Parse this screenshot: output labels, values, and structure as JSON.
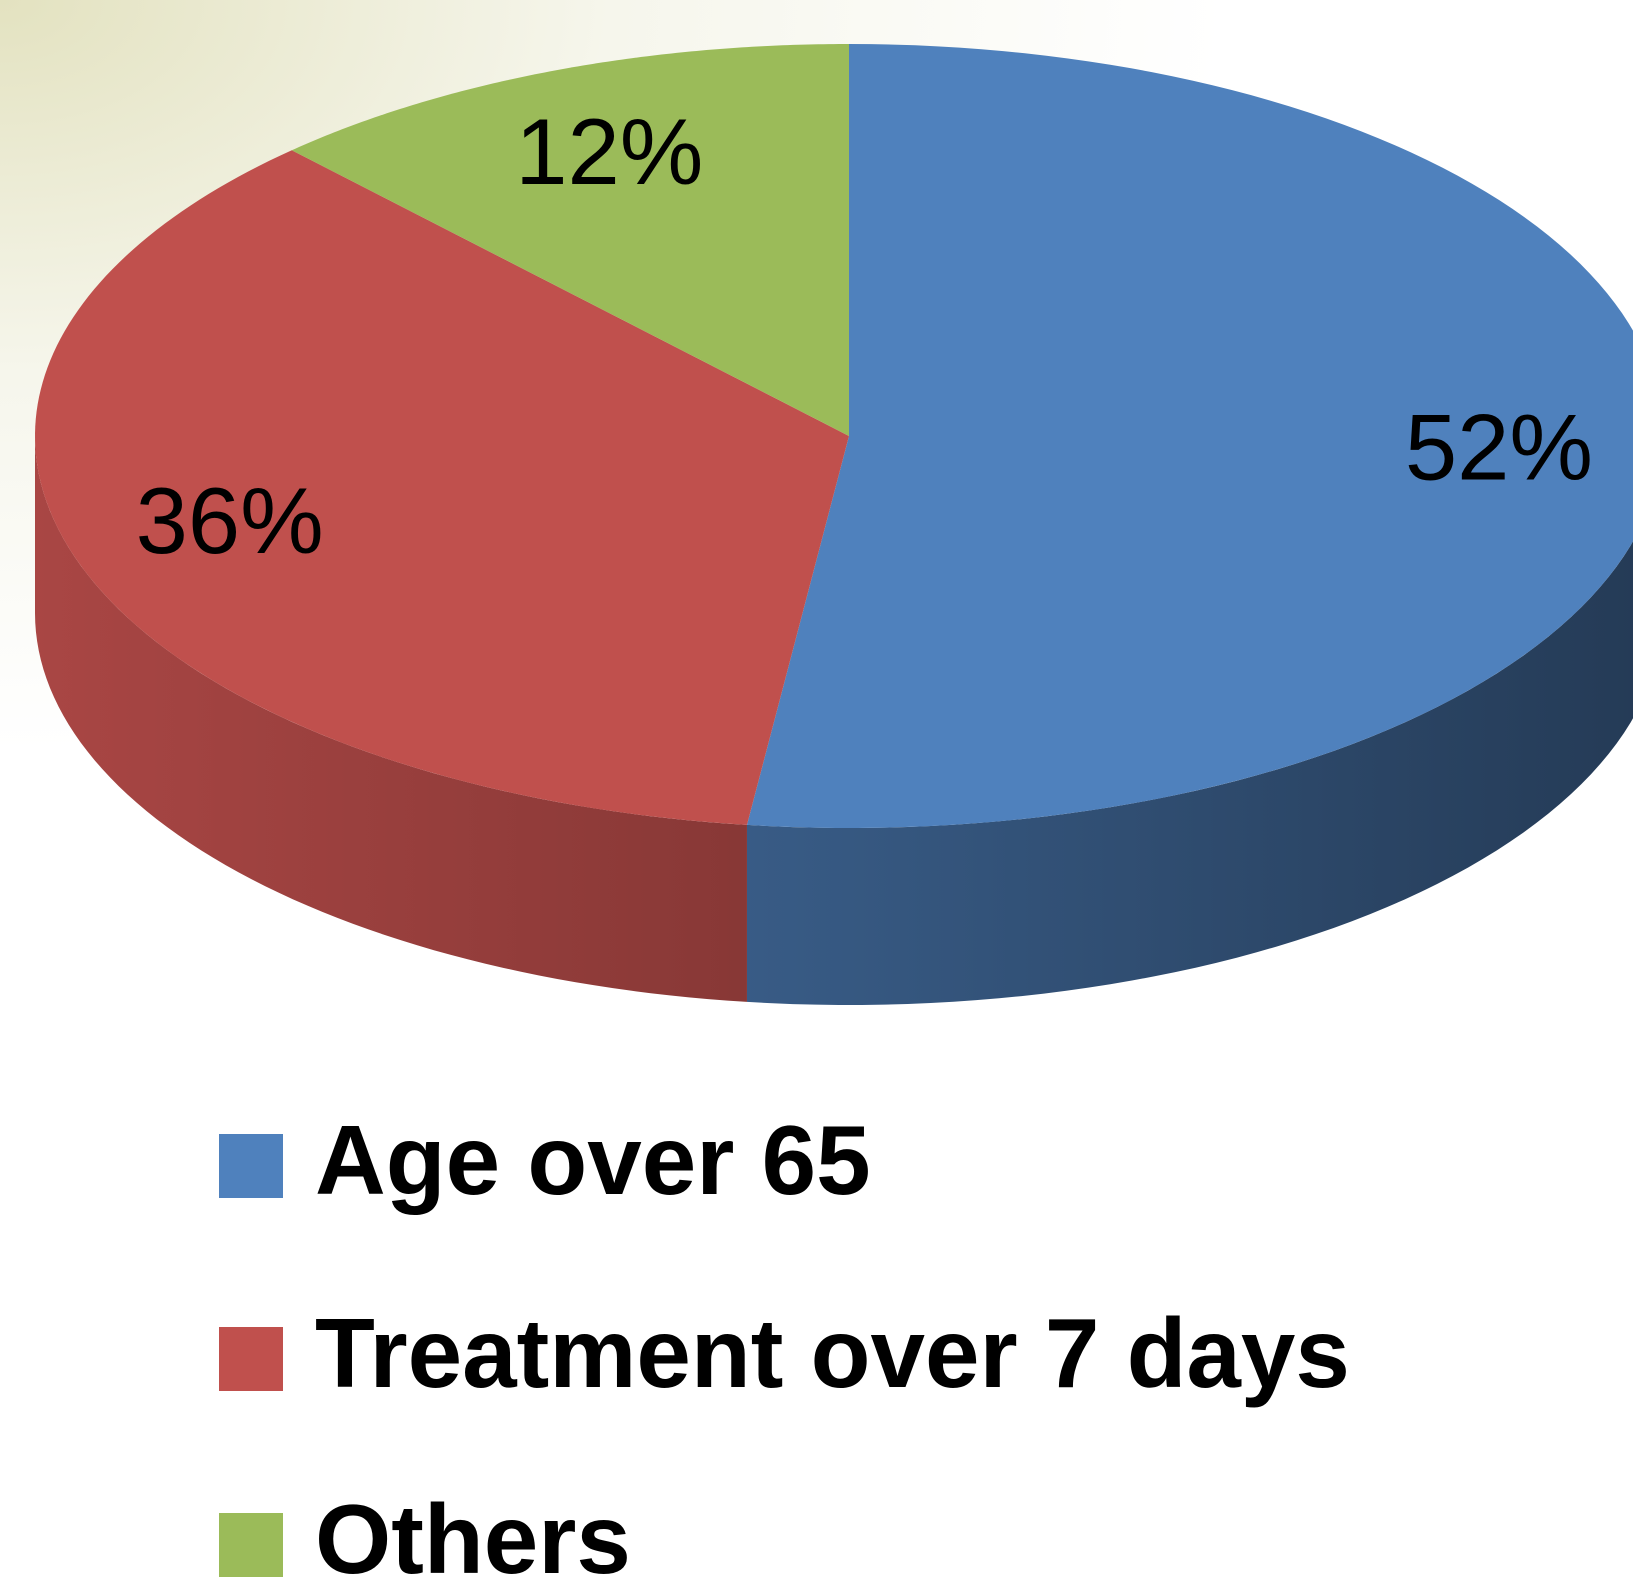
{
  "chart_data": {
    "type": "pie3d",
    "categories": [
      "Age over 65",
      "Treatment over 7 days",
      "Others"
    ],
    "values": [
      52,
      36,
      12
    ],
    "value_labels": [
      "52%",
      "36%",
      "12%"
    ],
    "colors": [
      "#4f81bd",
      "#c0504d",
      "#9bbb59"
    ],
    "legend": "bottom"
  }
}
